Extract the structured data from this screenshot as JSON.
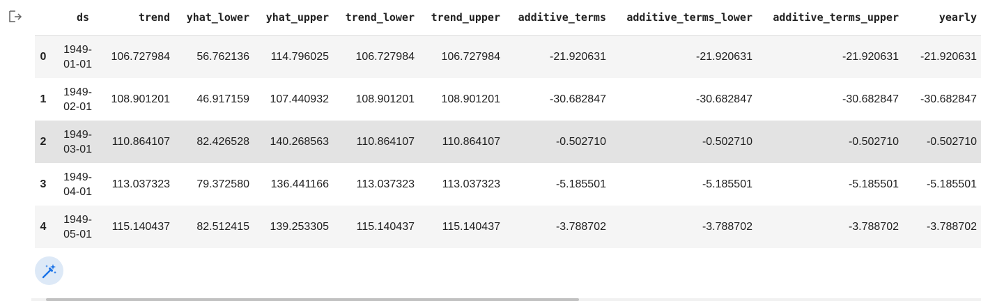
{
  "output": {
    "icon": "output-redirect-icon"
  },
  "table": {
    "columns": [
      "",
      "ds",
      "trend",
      "yhat_lower",
      "yhat_upper",
      "trend_lower",
      "trend_upper",
      "additive_terms",
      "additive_terms_lower",
      "additive_terms_upper",
      "yearly"
    ],
    "rows": [
      [
        "0",
        "1949-01-01",
        "106.727984",
        "56.762136",
        "114.796025",
        "106.727984",
        "106.727984",
        "-21.920631",
        "-21.920631",
        "-21.920631",
        "-21.920631"
      ],
      [
        "1",
        "1949-02-01",
        "108.901201",
        "46.917159",
        "107.440932",
        "108.901201",
        "108.901201",
        "-30.682847",
        "-30.682847",
        "-30.682847",
        "-30.682847"
      ],
      [
        "2",
        "1949-03-01",
        "110.864107",
        "82.426528",
        "140.268563",
        "110.864107",
        "110.864107",
        "-0.502710",
        "-0.502710",
        "-0.502710",
        "-0.502710"
      ],
      [
        "3",
        "1949-04-01",
        "113.037323",
        "79.372580",
        "136.441166",
        "113.037323",
        "113.037323",
        "-5.185501",
        "-5.185501",
        "-5.185501",
        "-5.185501"
      ],
      [
        "4",
        "1949-05-01",
        "115.140437",
        "82.512415",
        "139.253305",
        "115.140437",
        "115.140437",
        "-3.788702",
        "-3.788702",
        "-3.788702",
        "-3.788702"
      ]
    ],
    "hovered_row": 2
  },
  "toolbar": {
    "magic_icon": "magic-wand-icon"
  },
  "colors": {
    "accent": "#1a73e8",
    "stripe": "#f5f5f5",
    "hover": "#e3e3e3",
    "wand_bg": "#dde9f7"
  }
}
